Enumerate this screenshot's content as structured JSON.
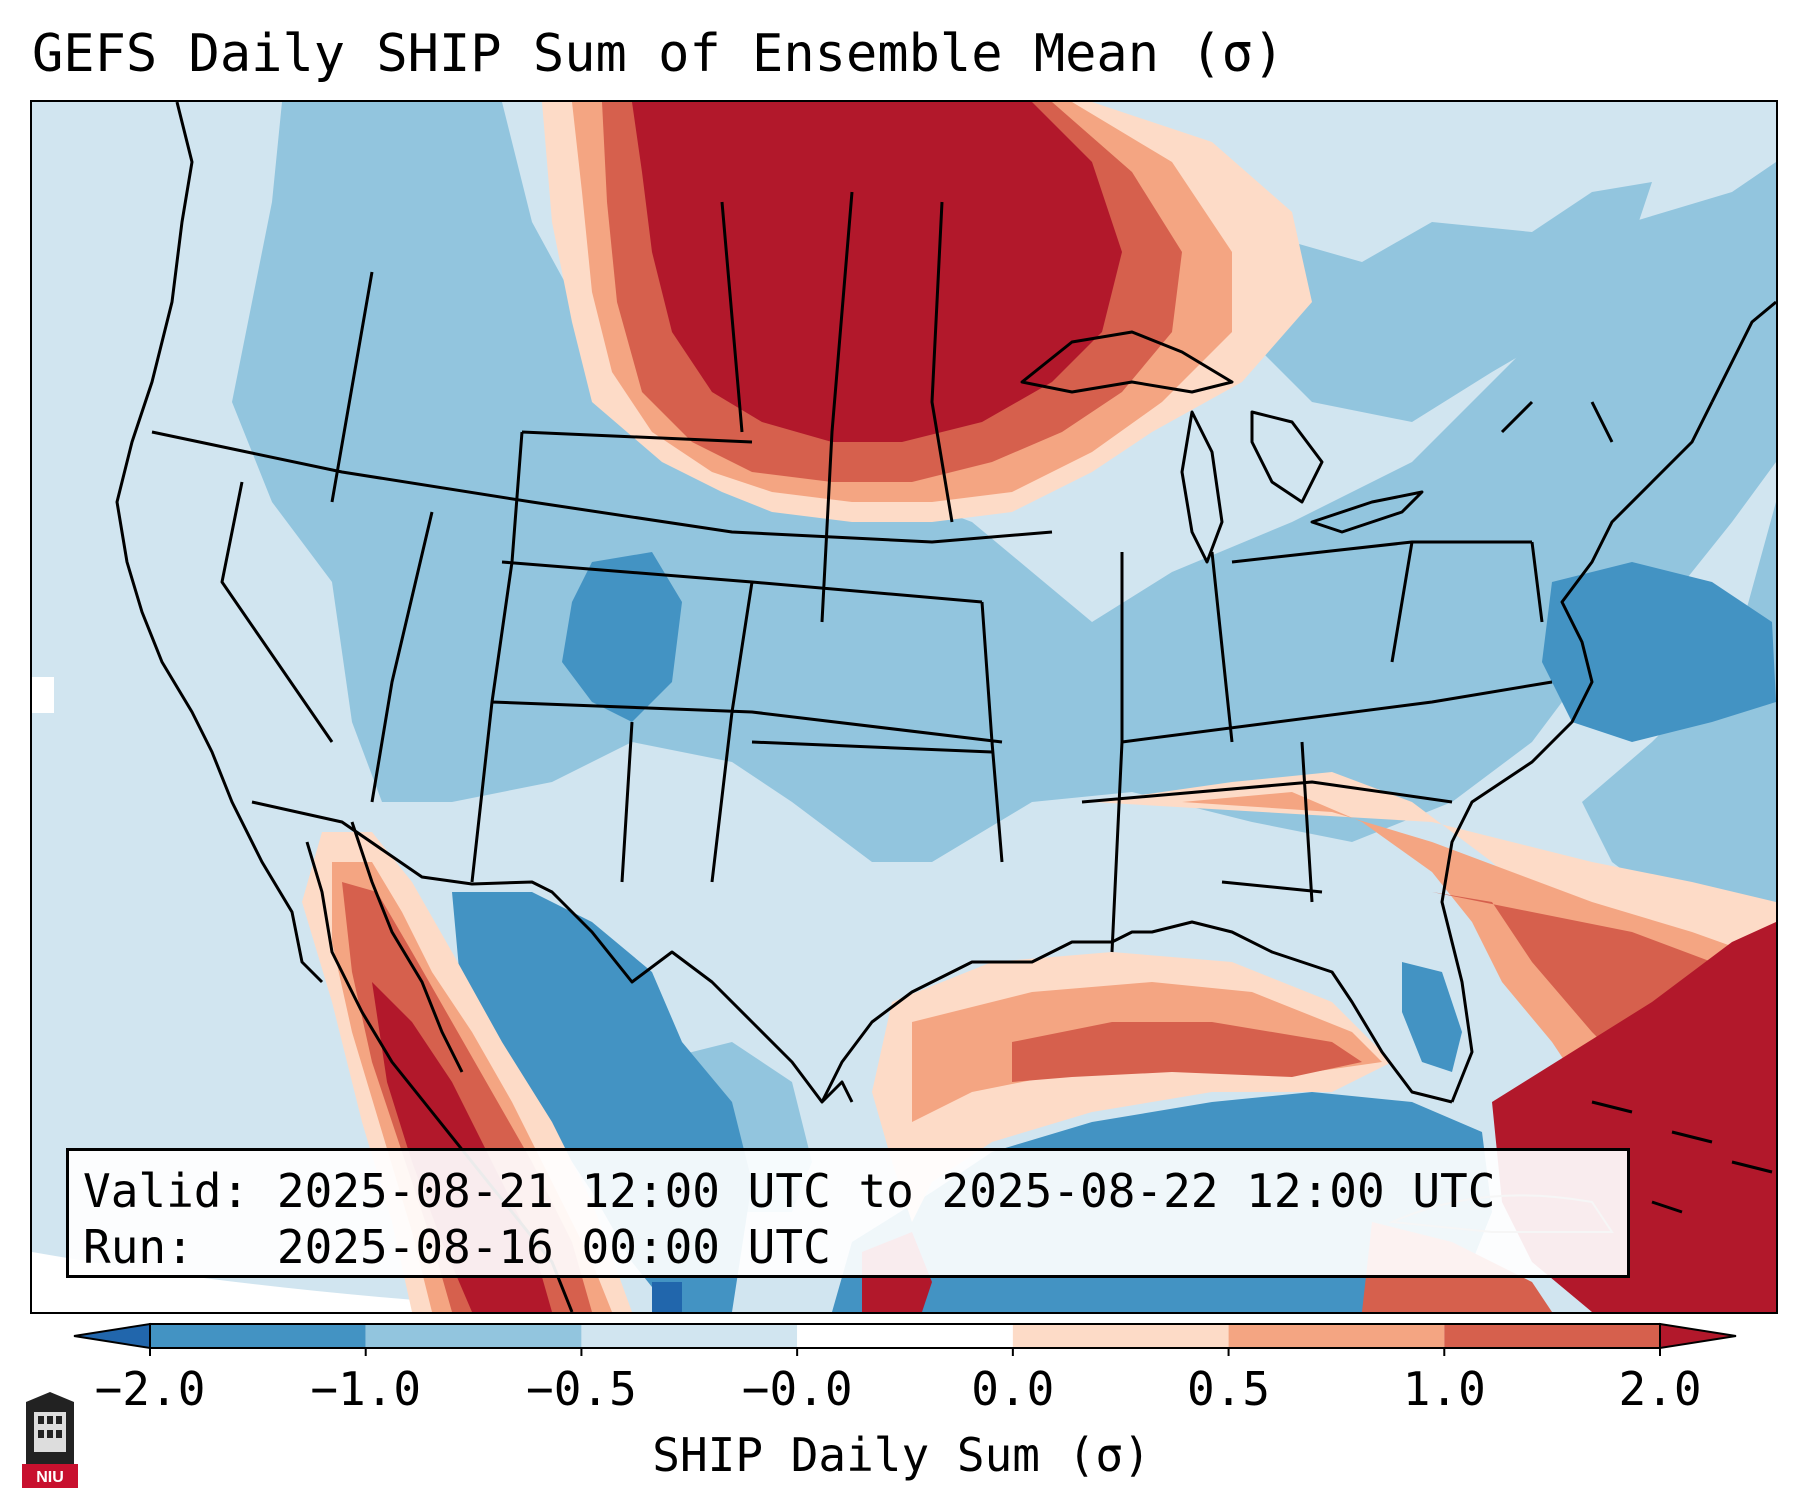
{
  "title": "GEFS Daily SHIP Sum of Ensemble Mean (σ)",
  "info": {
    "valid_label": "Valid:",
    "valid_value": "2025-08-21 12:00 UTC to 2025-08-22 12:00 UTC",
    "run_label": "Run:",
    "run_value": "2025-08-16 00:00 UTC"
  },
  "colorbar": {
    "label": "SHIP Daily Sum (σ)",
    "ticks": [
      "−2.0",
      "−1.0",
      "−0.5",
      "−0.0",
      "0.0",
      "0.5",
      "1.0",
      "2.0"
    ],
    "bins": [
      {
        "range": "<-2.0",
        "color": "#2166ac"
      },
      {
        "range": "-2.0 to -1.0",
        "color": "#4393c3"
      },
      {
        "range": "-1.0 to -0.5",
        "color": "#92c5de"
      },
      {
        "range": "-0.5 to -0.0",
        "color": "#d1e5f0"
      },
      {
        "range": "-0.0 to 0.0",
        "color": "#ffffff"
      },
      {
        "range": "0.0 to 0.5",
        "color": "#fddbc7"
      },
      {
        "range": "0.5 to 1.0",
        "color": "#f4a582"
      },
      {
        "range": "1.0 to 2.0",
        "color": "#d6604d"
      },
      {
        "range": ">2.0",
        "color": "#b2182b"
      }
    ]
  },
  "logo": {
    "text": "NIU"
  },
  "colors": {
    "frame": "#000000",
    "background": "#d1e5f0"
  }
}
